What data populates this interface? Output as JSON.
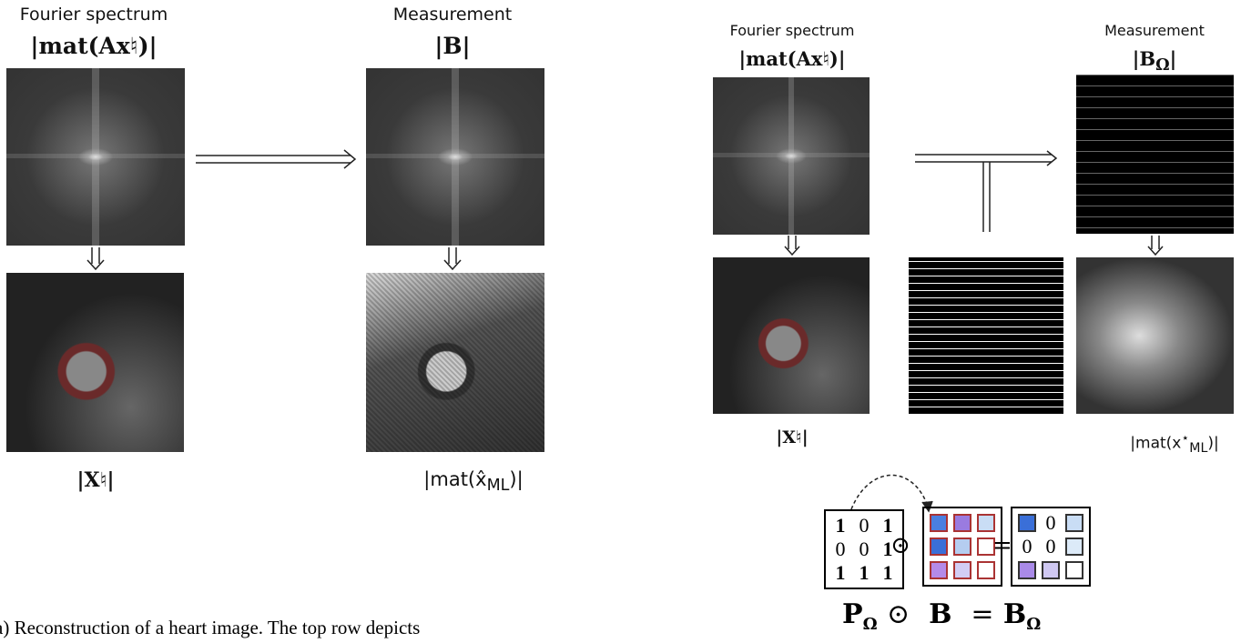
{
  "left": {
    "spectrum_title": "Fourier spectrum",
    "spectrum_formula": "|mat(Ax♮)|",
    "measure_title": "Measurement",
    "measure_formula": "|B|",
    "image_label": "|X♮|",
    "recon_label": {
      "pre": "|mat(x̂",
      "sub": "ML",
      "post": ")|"
    }
  },
  "right": {
    "spectrum_title": "Fourier spectrum",
    "spectrum_formula": "|mat(Ax♮)|",
    "measure_title": "Measurement",
    "measure_formula": {
      "pre": "|B",
      "sub": "Ω",
      "post": "|"
    },
    "image_label": "|X♮|",
    "recon_label": {
      "pre": "|mat(x",
      "sup": "⋆",
      "sub": "ML",
      "post": ")|"
    }
  },
  "mask_matrix": [
    [
      "1",
      "0",
      "1"
    ],
    [
      "0",
      "0",
      "1"
    ],
    [
      "1",
      "1",
      "1"
    ]
  ],
  "hadamard": "⊙",
  "equals": "=",
  "result_zeros": [
    "0",
    "0",
    "0"
  ],
  "equation": {
    "p": "P",
    "p_sub": "Ω",
    "op": "⊙",
    "b": "B",
    "eq": "=",
    "r": "B",
    "r_sub": "Ω"
  },
  "caption": "a) Reconstruction of a heart image. The top row depicts"
}
